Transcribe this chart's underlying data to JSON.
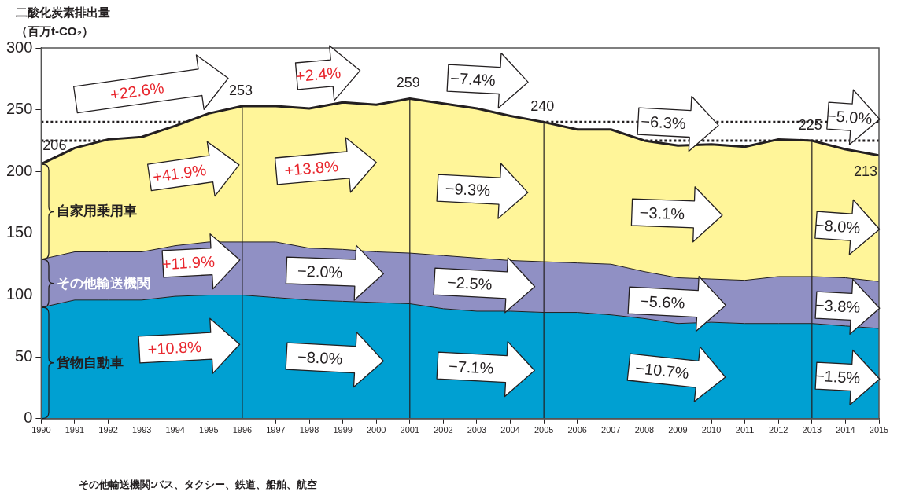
{
  "chart_data": {
    "type": "area",
    "stacked": true,
    "ylabel": "二酸化炭素排出量（百万t-CO₂）",
    "x": [
      1990,
      1991,
      1992,
      1993,
      1994,
      1995,
      1996,
      1997,
      1998,
      1999,
      2000,
      2001,
      2002,
      2003,
      2004,
      2005,
      2006,
      2007,
      2008,
      2009,
      2010,
      2011,
      2012,
      2013,
      2014,
      2015
    ],
    "series": [
      {
        "name": "貨物自動車",
        "color": "#00a0d2",
        "values": [
          90,
          96,
          96,
          96,
          99,
          100,
          100,
          98,
          96,
          95,
          94,
          93,
          89,
          87,
          87,
          86,
          86,
          84,
          81,
          77,
          78,
          77,
          77,
          77,
          75,
          73
        ]
      },
      {
        "name": "その他輸送機関",
        "color": "#9090c4",
        "values": [
          39,
          39,
          39,
          39,
          41,
          43,
          43,
          45,
          42,
          42,
          41,
          41,
          43,
          43,
          41,
          41,
          40,
          41,
          38,
          37,
          35,
          35,
          38,
          38,
          39,
          38
        ]
      },
      {
        "name": "自家用乗用車",
        "color": "#fff599",
        "values": [
          77,
          84,
          91,
          93,
          97,
          104,
          110,
          110,
          113,
          119,
          119,
          125,
          123,
          121,
          117,
          113,
          108,
          109,
          106,
          107,
          109,
          108,
          111,
          110,
          104,
          102
        ]
      }
    ],
    "xlim": [
      1990,
      2015
    ],
    "xticks": [
      1990,
      1991,
      1992,
      1993,
      1994,
      1995,
      1996,
      1997,
      1998,
      1999,
      2000,
      2001,
      2002,
      2003,
      2004,
      2005,
      2006,
      2007,
      2008,
      2009,
      2010,
      2011,
      2012,
      2013,
      2014,
      2015
    ],
    "ylim": [
      0,
      300
    ],
    "yticks": [
      0,
      50,
      100,
      150,
      200,
      250,
      300
    ],
    "ref_lines": [
      {
        "axis": "y",
        "value": 240,
        "color": "#231f20",
        "line_style": "dotted"
      },
      {
        "axis": "y",
        "value": 225,
        "color": "#231f20",
        "line_style": "dotted"
      },
      {
        "axis": "x",
        "value": 1996,
        "color": "#231f20",
        "line_style": "solid"
      },
      {
        "axis": "x",
        "value": 2001,
        "color": "#231f20",
        "line_style": "solid"
      },
      {
        "axis": "x",
        "value": 2005,
        "color": "#231f20",
        "line_style": "solid"
      },
      {
        "axis": "x",
        "value": 2013,
        "color": "#231f20",
        "line_style": "solid"
      }
    ],
    "annotations": [
      {
        "text": "206",
        "x": 1990,
        "y": 206
      },
      {
        "text": "253",
        "x": 1996,
        "y": 253
      },
      {
        "text": "259",
        "x": 2001,
        "y": 259
      },
      {
        "text": "240",
        "x": 2005,
        "y": 240
      },
      {
        "text": "225",
        "x": 2013,
        "y": 225
      },
      {
        "text": "213",
        "x": 2015,
        "y": 213
      },
      "+22.6%",
      "+2.4%",
      "−7.4%",
      "−6.3%",
      "−5.0%",
      "+41.9%",
      "+13.8%",
      "−9.3%",
      "−3.1%",
      "−8.0%",
      "+11.9%",
      "−2.0%",
      "−2.5%",
      "−5.6%",
      "−3.8%",
      "+10.8%",
      "−8.0%",
      "−7.1%",
      "−10.7%",
      "−1.5%",
      "その他輸送機関:バス、タクシー、鉄道、船舶、航空"
    ],
    "legend": false
  }
}
